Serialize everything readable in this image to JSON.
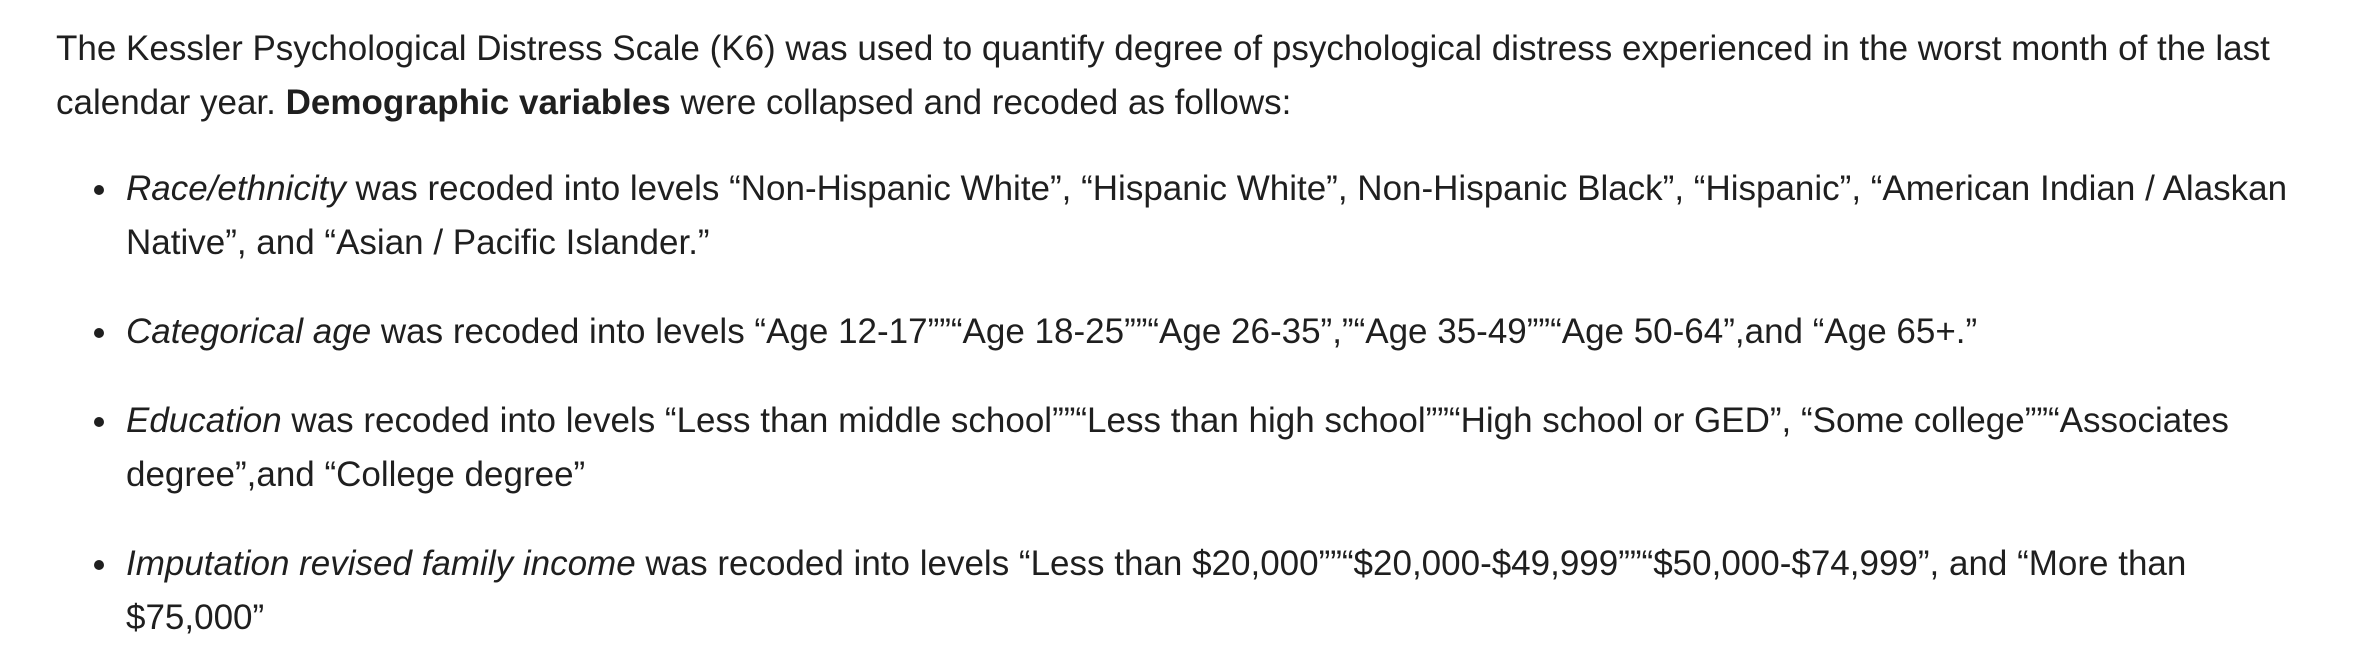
{
  "intro": {
    "text_1": "The Kessler Psychological Distress Scale (K6) was used to quantify degree of psychological distress experienced in the worst month of the last calendar year. ",
    "bold": "Demographic variables",
    "text_2": " were collapsed and recoded as follows:"
  },
  "items": [
    {
      "term": "Race/ethnicity",
      "rest": " was recoded into levels “Non-Hispanic White”, “Hispanic White”, Non-Hispanic Black”, “Hispanic”, “American Indian / Alaskan Native”, and “Asian / Pacific Islander.”"
    },
    {
      "term": "Categorical age",
      "rest": " was recoded into levels “Age 12-17””“Age 18-25””“Age 26-35”,”“Age 35-49””“Age 50-64”,and “Age 65+.”"
    },
    {
      "term": "Education",
      "rest": " was recoded into levels “Less than middle school””“Less than high school””“High school or GED”, “Some college””“Associates degree”,and “College degree”"
    },
    {
      "term": "Imputation revised family income",
      "rest": " was recoded into levels “Less than $20,000””“$20,000-$49,999””“$50,000-$74,999”, and “More than $75,000”"
    }
  ]
}
